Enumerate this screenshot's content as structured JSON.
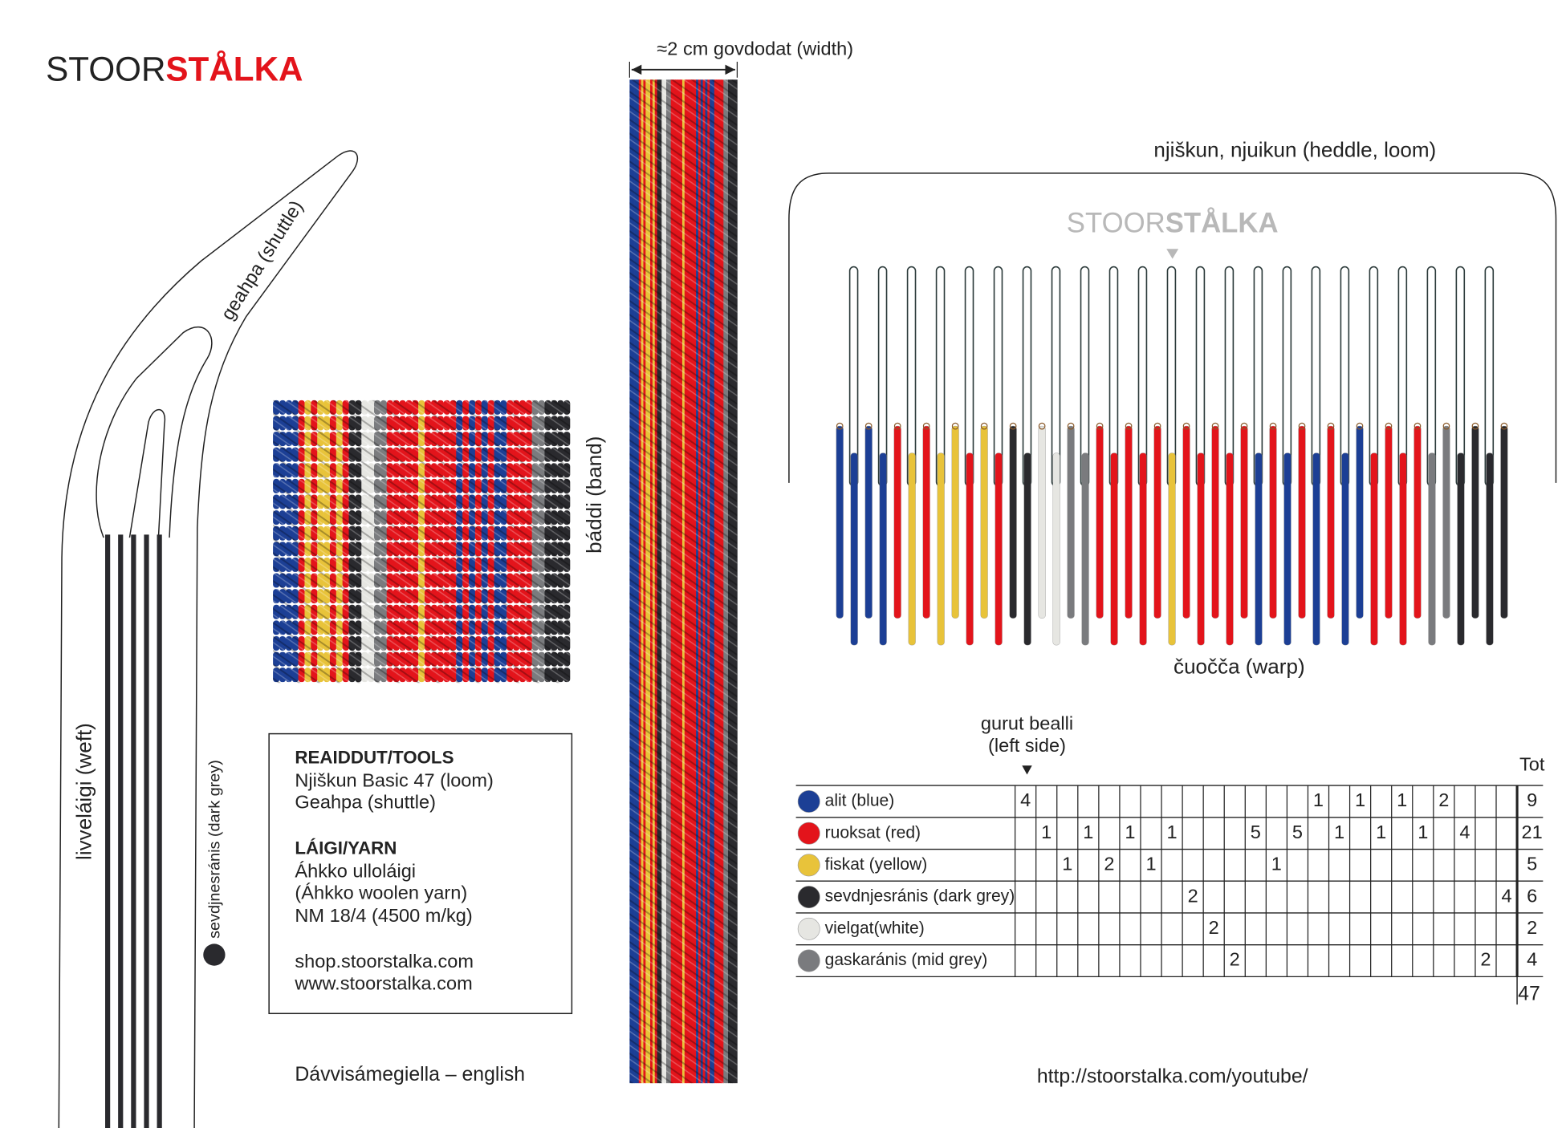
{
  "logo": {
    "stoor": "STOOR",
    "stalka": "STÅLKA"
  },
  "shuttle_label": "geahpa (shuttle)",
  "weft_label": "livveláigi (weft)",
  "weft_color_label": "sevdjnesránis (dark grey)",
  "band_label": "báddi (band)",
  "width_label": "≈2 cm govdodat (width)",
  "heddle": {
    "label": "njiškun, njuikun (heddle, loom)",
    "logo": {
      "stoor": "STOOR",
      "stalka": "STÅLKA"
    }
  },
  "warp_label": "čuočča (warp)",
  "tools": {
    "heading": "REAIDDUT/TOOLS",
    "lines": [
      "Njiškun Basic 47 (loom)",
      "Geahpa (shuttle)"
    ]
  },
  "yarn": {
    "heading": "LÁIGI/YARN",
    "lines": [
      "Áhkko ulloláigi",
      "(Áhkko woolen yarn)",
      "NM 18/4 (4500 m/kg)"
    ]
  },
  "links": [
    "shop.stoorstalka.com",
    "www.stoorstalka.com"
  ],
  "language": "Dávvisámegiella – english",
  "table": {
    "start_label": [
      "gurut bealli",
      "(left side)"
    ],
    "total_header": "Tot",
    "rows": [
      {
        "name": "alit (blue)",
        "color": "#1c3f95",
        "counts": [
          4,
          null,
          null,
          null,
          null,
          null,
          null,
          null,
          null,
          null,
          null,
          null,
          null,
          null,
          1,
          null,
          1,
          null,
          1,
          null,
          2,
          null,
          null,
          null
        ],
        "total": 9
      },
      {
        "name": "ruoksat (red)",
        "color": "#e3141b",
        "counts": [
          null,
          1,
          null,
          1,
          null,
          1,
          null,
          1,
          null,
          null,
          null,
          5,
          null,
          5,
          null,
          1,
          null,
          1,
          null,
          1,
          null,
          4,
          null,
          null
        ],
        "total": 21
      },
      {
        "name": "fiskat (yellow)",
        "color": "#e8c33a",
        "counts": [
          null,
          null,
          1,
          null,
          2,
          null,
          1,
          null,
          null,
          null,
          null,
          null,
          1,
          null,
          null,
          null,
          null,
          null,
          null,
          null,
          null,
          null,
          null,
          null
        ],
        "total": 5
      },
      {
        "name": "sevdnjesránis (dark grey)",
        "color": "#2a2a2e",
        "counts": [
          null,
          null,
          null,
          null,
          null,
          null,
          null,
          null,
          2,
          null,
          null,
          null,
          null,
          null,
          null,
          null,
          null,
          null,
          null,
          null,
          null,
          null,
          null,
          4
        ],
        "total": 6
      },
      {
        "name": "vielgat(white)",
        "color": "#e6e6e2",
        "counts": [
          null,
          null,
          null,
          null,
          null,
          null,
          null,
          null,
          null,
          2,
          null,
          null,
          null,
          null,
          null,
          null,
          null,
          null,
          null,
          null,
          null,
          null,
          null,
          null
        ],
        "total": 2
      },
      {
        "name": "gaskaránis (mid grey)",
        "color": "#7a7b7e",
        "counts": [
          null,
          null,
          null,
          null,
          null,
          null,
          null,
          null,
          null,
          null,
          2,
          null,
          null,
          null,
          null,
          null,
          null,
          null,
          null,
          null,
          null,
          null,
          2,
          null
        ],
        "total": 4
      }
    ],
    "grand_total": 47
  },
  "url": "http://stoorstalka.com/youtube/"
}
